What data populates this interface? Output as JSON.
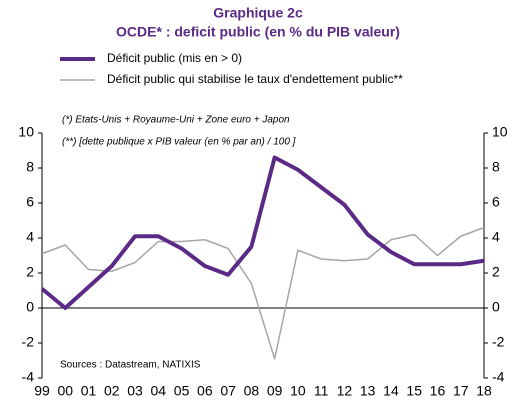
{
  "chart_data": {
    "type": "line",
    "title": "Graphique 2c",
    "subtitle": "OCDE* : deficit public (en % du PIB valeur)",
    "annotations": [
      "(*) Etats-Unis + Royaume-Uni  + Zone euro + Japon",
      "(**) [dette publique x PIB valeur (en % par an) / 100 ]",
      "Sources : Datastream, NATIXIS"
    ],
    "categories": [
      "99",
      "00",
      "01",
      "02",
      "03",
      "04",
      "05",
      "06",
      "07",
      "08",
      "09",
      "10",
      "11",
      "12",
      "13",
      "14",
      "15",
      "16",
      "17",
      "18"
    ],
    "series": [
      {
        "name": "Déficit public (mis en > 0)",
        "color": "#5b2a86",
        "values": [
          1.1,
          0,
          1.2,
          2.4,
          4.1,
          4.1,
          3.4,
          2.4,
          1.9,
          3.5,
          8.6,
          7.9,
          6.9,
          5.9,
          4.2,
          3.2,
          2.5,
          2.5,
          2.5,
          2.7
        ]
      },
      {
        "name": "Déficit public qui stabilise le taux d'endettement public**",
        "color": "#a6a6a6",
        "values": [
          3.1,
          3.6,
          2.2,
          2.1,
          2.6,
          3.8,
          3.8,
          3.9,
          3.4,
          1.4,
          -2.9,
          3.3,
          2.8,
          2.7,
          2.8,
          3.9,
          4.2,
          3.0,
          4.1,
          4.6
        ]
      }
    ],
    "ylim": [
      -4,
      10
    ],
    "yticks": [
      -4,
      -2,
      0,
      2,
      4,
      6,
      8,
      10
    ],
    "y2lim": [
      -4,
      10
    ],
    "y2ticks": [
      -4,
      -2,
      0,
      2,
      4,
      6,
      8,
      10
    ]
  }
}
